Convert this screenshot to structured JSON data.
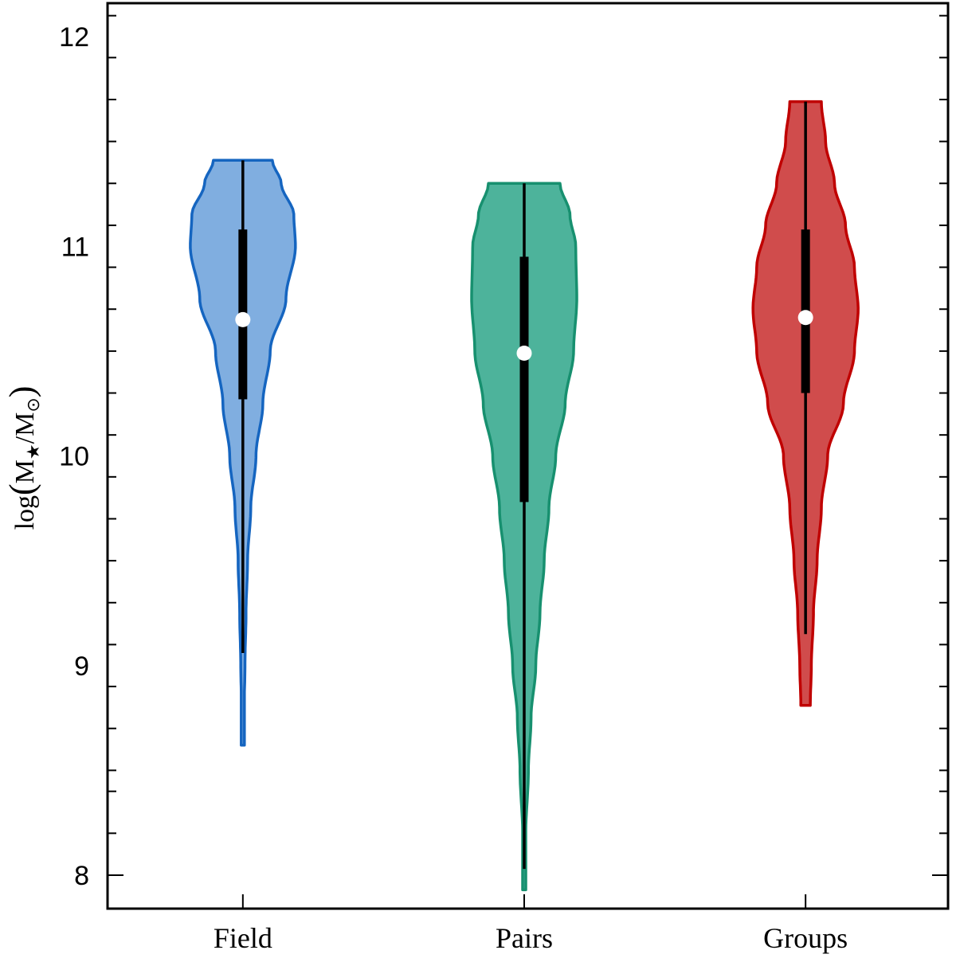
{
  "chart_data": {
    "type": "violin",
    "ylabel": "log(M★/M⊙)",
    "ylabel_parts": {
      "prefix": "log",
      "open": "(",
      "m1": "M",
      "sub1": "★",
      "slash": "/",
      "m2": "M",
      "sub2": "⊙",
      "close": ")"
    },
    "ylim": [
      7.85,
      12.15
    ],
    "yticks": [
      8,
      9,
      10,
      11,
      12
    ],
    "ytick_labels": [
      "8",
      "9",
      "10",
      "11",
      "12"
    ],
    "minor_tick_step": 0.2,
    "grid": false,
    "categories": [
      "Field",
      "Pairs",
      "Groups"
    ],
    "series": [
      {
        "category": "Field",
        "fill": "#80aee0",
        "stroke": "#1565c0",
        "min": 8.62,
        "max": 11.41,
        "whisker_low": 9.06,
        "whisker_high": 11.41,
        "q1": 10.27,
        "q3": 11.08,
        "median": 10.65,
        "profile": [
          [
            8.62,
            0.01
          ],
          [
            8.75,
            0.02
          ],
          [
            9.0,
            0.04
          ],
          [
            9.25,
            0.06
          ],
          [
            9.5,
            0.09
          ],
          [
            9.75,
            0.15
          ],
          [
            10.0,
            0.25
          ],
          [
            10.25,
            0.38
          ],
          [
            10.5,
            0.52
          ],
          [
            10.75,
            0.82
          ],
          [
            11.0,
            1.0
          ],
          [
            11.15,
            0.97
          ],
          [
            11.3,
            0.73
          ],
          [
            11.41,
            0.56
          ]
        ]
      },
      {
        "category": "Pairs",
        "fill": "#4db39b",
        "stroke": "#17906f",
        "min": 7.93,
        "max": 11.3,
        "whisker_low": 8.03,
        "whisker_high": 11.3,
        "q1": 9.78,
        "q3": 10.95,
        "median": 10.49,
        "profile": [
          [
            7.93,
            0.01
          ],
          [
            8.2,
            0.03
          ],
          [
            8.5,
            0.08
          ],
          [
            8.75,
            0.13
          ],
          [
            9.0,
            0.22
          ],
          [
            9.25,
            0.3
          ],
          [
            9.5,
            0.38
          ],
          [
            9.75,
            0.47
          ],
          [
            10.0,
            0.6
          ],
          [
            10.25,
            0.78
          ],
          [
            10.5,
            0.94
          ],
          [
            10.75,
            1.0
          ],
          [
            11.0,
            0.98
          ],
          [
            11.15,
            0.87
          ],
          [
            11.3,
            0.68
          ]
        ]
      },
      {
        "category": "Groups",
        "fill": "#d04c4c",
        "stroke": "#c00000",
        "min": 8.81,
        "max": 11.69,
        "whisker_low": 9.15,
        "whisker_high": 11.69,
        "q1": 10.3,
        "q3": 11.08,
        "median": 10.66,
        "profile": [
          [
            8.81,
            0.09
          ],
          [
            9.0,
            0.11
          ],
          [
            9.25,
            0.15
          ],
          [
            9.5,
            0.22
          ],
          [
            9.75,
            0.3
          ],
          [
            10.0,
            0.42
          ],
          [
            10.25,
            0.72
          ],
          [
            10.5,
            0.93
          ],
          [
            10.7,
            1.0
          ],
          [
            10.9,
            0.93
          ],
          [
            11.1,
            0.76
          ],
          [
            11.3,
            0.55
          ],
          [
            11.5,
            0.38
          ],
          [
            11.69,
            0.3
          ]
        ]
      }
    ]
  }
}
